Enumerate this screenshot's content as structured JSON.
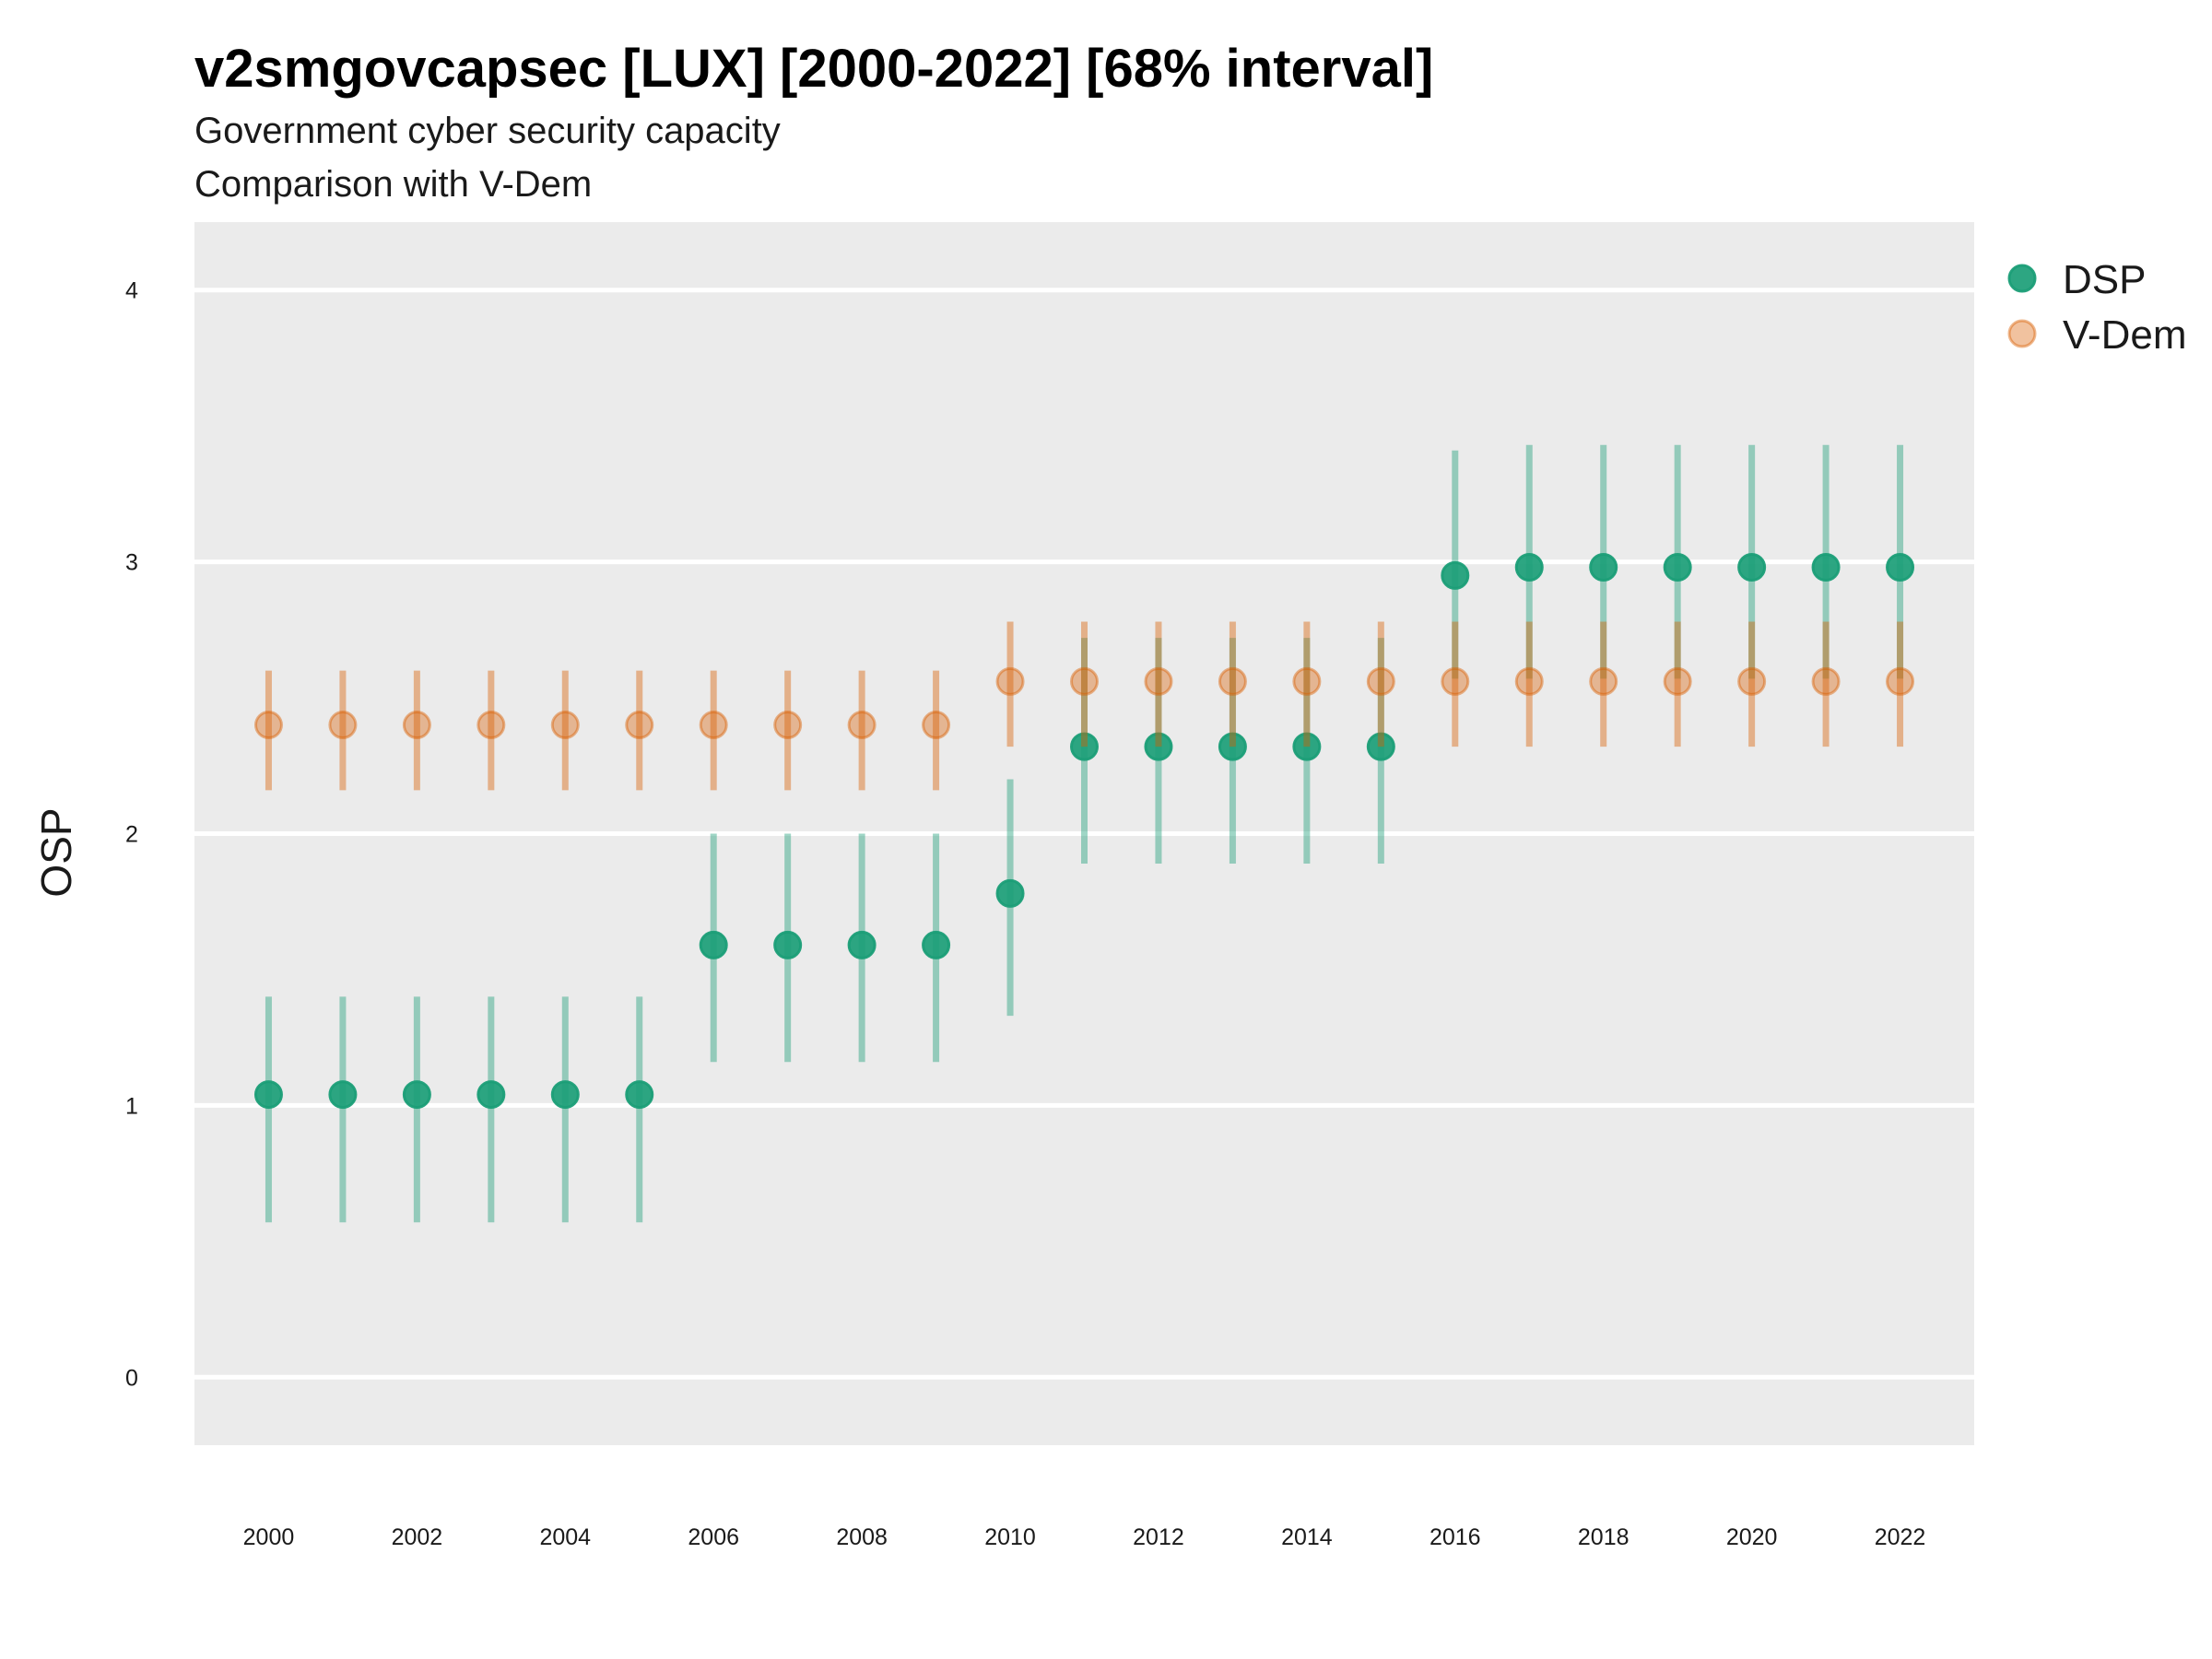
{
  "chart_data": {
    "type": "scatter",
    "title": "v2smgovcapsec [LUX] [2000-2022] [68% interval]",
    "subtitle": "Government cyber security capacity",
    "caption": "Comparison with V-Dem",
    "xlabel": "",
    "ylabel": "OSP",
    "ylim": [
      -0.25,
      4.25
    ],
    "xlim": [
      1999,
      2023
    ],
    "yticks": [
      0,
      1,
      2,
      3,
      4
    ],
    "xticks": [
      2000,
      2002,
      2004,
      2006,
      2008,
      2010,
      2012,
      2014,
      2016,
      2018,
      2020,
      2022
    ],
    "grid": true,
    "legend_position": "right",
    "series": [
      {
        "name": "DSP",
        "color": "#1b9e77",
        "x": [
          2000,
          2001,
          2002,
          2003,
          2004,
          2005,
          2006,
          2007,
          2008,
          2009,
          2010,
          2011,
          2012,
          2013,
          2014,
          2015,
          2016,
          2017,
          2018,
          2019,
          2020,
          2021,
          2022
        ],
        "y": [
          1.04,
          1.04,
          1.04,
          1.04,
          1.04,
          1.04,
          1.59,
          1.59,
          1.59,
          1.59,
          1.78,
          2.32,
          2.32,
          2.32,
          2.32,
          2.32,
          2.95,
          2.98,
          2.98,
          2.98,
          2.98,
          2.98,
          2.98
        ],
        "lower": [
          0.57,
          0.57,
          0.57,
          0.57,
          0.57,
          0.57,
          1.16,
          1.16,
          1.16,
          1.16,
          1.33,
          1.89,
          1.89,
          1.89,
          1.89,
          1.89,
          2.57,
          2.57,
          2.57,
          2.57,
          2.57,
          2.57,
          2.57
        ],
        "upper": [
          1.4,
          1.4,
          1.4,
          1.4,
          1.4,
          1.4,
          2.0,
          2.0,
          2.0,
          2.0,
          2.2,
          2.72,
          2.72,
          2.72,
          2.72,
          2.72,
          3.41,
          3.43,
          3.43,
          3.43,
          3.43,
          3.43,
          3.43
        ]
      },
      {
        "name": "V-Dem",
        "color": "#d95f02",
        "x": [
          2000,
          2001,
          2002,
          2003,
          2004,
          2005,
          2006,
          2007,
          2008,
          2009,
          2010,
          2011,
          2012,
          2013,
          2014,
          2015,
          2016,
          2017,
          2018,
          2019,
          2020,
          2021,
          2022
        ],
        "y": [
          2.4,
          2.4,
          2.4,
          2.4,
          2.4,
          2.4,
          2.4,
          2.4,
          2.4,
          2.4,
          2.56,
          2.56,
          2.56,
          2.56,
          2.56,
          2.56,
          2.56,
          2.56,
          2.56,
          2.56,
          2.56,
          2.56,
          2.56
        ],
        "lower": [
          2.16,
          2.16,
          2.16,
          2.16,
          2.16,
          2.16,
          2.16,
          2.16,
          2.16,
          2.16,
          2.32,
          2.32,
          2.32,
          2.32,
          2.32,
          2.32,
          2.32,
          2.32,
          2.32,
          2.32,
          2.32,
          2.32,
          2.32
        ],
        "upper": [
          2.6,
          2.6,
          2.6,
          2.6,
          2.6,
          2.6,
          2.6,
          2.6,
          2.6,
          2.6,
          2.78,
          2.78,
          2.78,
          2.78,
          2.78,
          2.78,
          2.78,
          2.78,
          2.78,
          2.78,
          2.78,
          2.78,
          2.78
        ]
      }
    ]
  }
}
